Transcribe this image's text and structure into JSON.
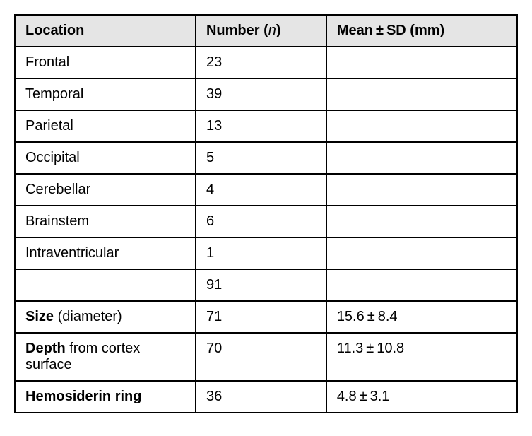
{
  "table": {
    "headers": {
      "location": "Location",
      "number_prefix": "Number (",
      "number_var": "n",
      "number_suffix": ")",
      "mean_prefix": "Mean",
      "mean_pm": "±",
      "mean_suffix": "SD (mm)"
    },
    "rows": [
      {
        "location": "Frontal",
        "number": "23",
        "mean": ""
      },
      {
        "location": "Temporal",
        "number": "39",
        "mean": ""
      },
      {
        "location": "Parietal",
        "number": "13",
        "mean": ""
      },
      {
        "location": "Occipital",
        "number": "5",
        "mean": ""
      },
      {
        "location": "Cerebellar",
        "number": "4",
        "mean": ""
      },
      {
        "location": "Brainstem",
        "number": "6",
        "mean": ""
      },
      {
        "location": "Intraventricular",
        "number": "1",
        "mean": ""
      },
      {
        "location": "",
        "number": "91",
        "mean": ""
      }
    ],
    "special_rows": {
      "size": {
        "bold": "Size",
        "rest": " (diameter)",
        "number": "71",
        "mean": "15.6 ± 8.4"
      },
      "depth": {
        "bold": "Depth",
        "rest": " from cortex surface",
        "number": "70",
        "mean": "11.3 ± 10.8"
      },
      "hemosiderin": {
        "bold": "Hemosiderin ring",
        "rest": "",
        "number": "36",
        "mean": "4.8 ± 3.1"
      }
    }
  }
}
